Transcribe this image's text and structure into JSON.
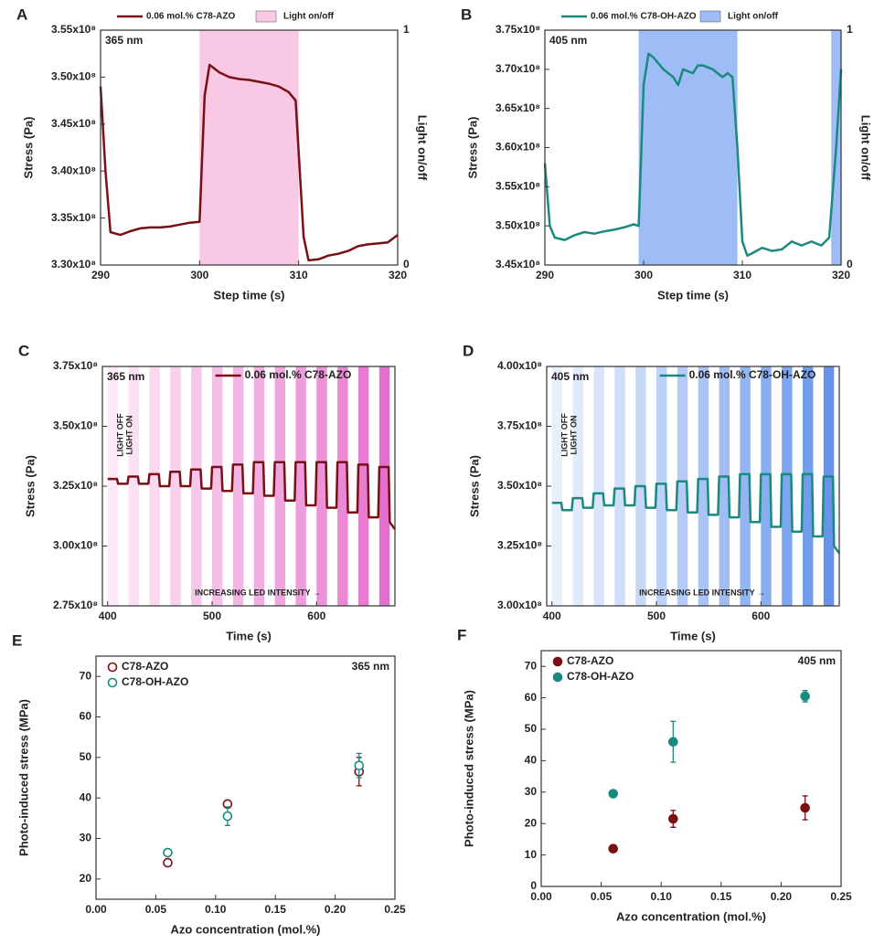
{
  "chart_data": [
    {
      "panel": "A",
      "type": "line",
      "label": "365 nm",
      "xlabel": "Step time (s)",
      "ylabel": "Stress (Pa)",
      "y2label": "Light on/off",
      "xlim": [
        290,
        320
      ],
      "xticks": [
        290,
        300,
        310,
        320
      ],
      "ylim": [
        330000000.0,
        355000000.0
      ],
      "yticks": [
        {
          "value": 330000000.0,
          "label": "3.30x10⁸"
        },
        {
          "value": 335000000.0,
          "label": "3.35x10⁸"
        },
        {
          "value": 340000000.0,
          "label": "3.40x10⁸"
        },
        {
          "value": 345000000.0,
          "label": "3.45x10⁸"
        },
        {
          "value": 350000000.0,
          "label": "3.50x10⁸"
        },
        {
          "value": 355000000.0,
          "label": "3.55x10⁸"
        }
      ],
      "y2lim": [
        0,
        1
      ],
      "y2ticks": [
        0,
        1
      ],
      "series": [
        {
          "name": "0.06 mol.% C78-AZO",
          "color": "#7a0f14",
          "x": [
            290,
            290.5,
            291,
            292,
            293,
            294,
            295,
            296,
            297,
            298,
            299,
            300,
            300.5,
            301,
            302,
            303,
            304,
            305,
            306,
            307,
            308,
            309,
            309.7,
            310,
            310.5,
            311,
            312,
            313,
            314,
            315,
            316,
            317,
            318,
            319,
            320
          ],
          "values": [
            349000000.0,
            340000000.0,
            333500000.0,
            333200000.0,
            333600000.0,
            333900000.0,
            334000000.0,
            334000000.0,
            334100000.0,
            334300000.0,
            334500000.0,
            334600000.0,
            348000000.0,
            351300000.0,
            350500000.0,
            350000000.0,
            349800000.0,
            349700000.0,
            349500000.0,
            349300000.0,
            349000000.0,
            348400000.0,
            347500000.0,
            342000000.0,
            333000000.0,
            330500000.0,
            330600000.0,
            331000000.0,
            331200000.0,
            331500000.0,
            332000000.0,
            332200000.0,
            332300000.0,
            332400000.0,
            333200000.0
          ]
        },
        {
          "name": "Light on/off",
          "color": "#f8c8e4",
          "axis": "y2",
          "fill": true,
          "x": [
            290,
            300,
            300,
            310,
            310,
            320
          ],
          "values": [
            0,
            0,
            1,
            1,
            0,
            0
          ]
        }
      ]
    },
    {
      "panel": "B",
      "type": "line",
      "label": "405 nm",
      "xlabel": "Step time (s)",
      "ylabel": "Stress (Pa)",
      "y2label": "Light on/off",
      "xlim": [
        290,
        320
      ],
      "xticks": [
        290,
        300,
        310,
        320
      ],
      "ylim": [
        345000000.0,
        375000000.0
      ],
      "yticks": [
        {
          "value": 345000000.0,
          "label": "3.45x10⁸"
        },
        {
          "value": 350000000.0,
          "label": "3.50x10⁸"
        },
        {
          "value": 355000000.0,
          "label": "3.55x10⁸"
        },
        {
          "value": 360000000.0,
          "label": "3.60x10⁸"
        },
        {
          "value": 365000000.0,
          "label": "3.65x10⁸"
        },
        {
          "value": 370000000.0,
          "label": "3.70x10⁸"
        },
        {
          "value": 375000000.0,
          "label": "3.75x10⁸"
        }
      ],
      "y2lim": [
        0,
        1
      ],
      "y2ticks": [
        0,
        1
      ],
      "series": [
        {
          "name": "0.06 mol.% C78-OH-AZO",
          "color": "#1a8a80",
          "x": [
            290,
            290.5,
            291,
            292,
            293,
            294,
            295,
            296,
            297,
            298,
            299,
            299.5,
            300,
            300.5,
            301,
            302,
            303,
            303.5,
            304,
            305,
            305.5,
            306,
            307,
            307.5,
            308,
            308.5,
            309,
            309.5,
            310,
            310.5,
            311,
            312,
            313,
            314,
            315,
            316,
            317,
            318,
            318.8,
            319.5,
            320
          ],
          "values": [
            358000000.0,
            350000000.0,
            348500000.0,
            348200000.0,
            348800000.0,
            349200000.0,
            349000000.0,
            349300000.0,
            349500000.0,
            349800000.0,
            350200000.0,
            350000000.0,
            368000000.0,
            372000000.0,
            371500000.0,
            370000000.0,
            369000000.0,
            368000000.0,
            370000000.0,
            369500000.0,
            370500000.0,
            370500000.0,
            370000000.0,
            369500000.0,
            369000000.0,
            369500000.0,
            369000000.0,
            360000000.0,
            348000000.0,
            346200000.0,
            346500000.0,
            347200000.0,
            346800000.0,
            347000000.0,
            348000000.0,
            347500000.0,
            348000000.0,
            347500000.0,
            348500000.0,
            360000000.0,
            370000000.0
          ]
        },
        {
          "name": "Light on/off",
          "color": "#9ebcf5",
          "axis": "y2",
          "fill": true,
          "x": [
            290,
            299.5,
            299.5,
            309.5,
            309.5,
            319,
            319,
            320
          ],
          "values": [
            0,
            0,
            1,
            1,
            0,
            0,
            1,
            1
          ]
        }
      ]
    },
    {
      "panel": "C",
      "type": "line",
      "label": "365 nm",
      "annotations": [
        "LIGHT OFF",
        "LIGHT ON",
        "INCREASING LED INTENSITY →"
      ],
      "xlabel": "Time (s)",
      "ylabel": "Stress (Pa)",
      "xlim": [
        395,
        675
      ],
      "xticks": [
        400,
        500,
        600
      ],
      "ylim": [
        275000000.0,
        375000000.0
      ],
      "yticks": [
        {
          "value": 275000000.0,
          "label": "2.75x10⁸"
        },
        {
          "value": 300000000.0,
          "label": "3.00x10⁸"
        },
        {
          "value": 325000000.0,
          "label": "3.25x10⁸"
        },
        {
          "value": 350000000.0,
          "label": "3.50x10⁸"
        },
        {
          "value": 375000000.0,
          "label": "3.75x10⁸"
        }
      ],
      "bands": [
        {
          "x": [
            400,
            410
          ],
          "color": "#fce8f6"
        },
        {
          "x": [
            420,
            430
          ],
          "color": "#fbe0f3"
        },
        {
          "x": [
            440,
            450
          ],
          "color": "#f9d8f0"
        },
        {
          "x": [
            460,
            470
          ],
          "color": "#f8d0ed"
        },
        {
          "x": [
            480,
            490
          ],
          "color": "#f6c7ea"
        },
        {
          "x": [
            500,
            510
          ],
          "color": "#f5bfe7"
        },
        {
          "x": [
            520,
            530
          ],
          "color": "#f3b6e4"
        },
        {
          "x": [
            540,
            550
          ],
          "color": "#f1aee1"
        },
        {
          "x": [
            560,
            570
          ],
          "color": "#f0a5de"
        },
        {
          "x": [
            580,
            590
          ],
          "color": "#ee9cdb"
        },
        {
          "x": [
            600,
            610
          ],
          "color": "#ec92d8"
        },
        {
          "x": [
            620,
            630
          ],
          "color": "#ea88d5"
        },
        {
          "x": [
            640,
            650
          ],
          "color": "#e87cd2"
        },
        {
          "x": [
            660,
            670
          ],
          "color": "#e56fce"
        }
      ],
      "series": [
        {
          "name": "0.06 mol.% C78-AZO",
          "color": "#7a0f14",
          "x": [
            400,
            409,
            410,
            419,
            420,
            429,
            430,
            439,
            440,
            449,
            450,
            459,
            460,
            469,
            470,
            479,
            480,
            489,
            490,
            499,
            500,
            509,
            510,
            519,
            520,
            529,
            530,
            539,
            540,
            549,
            550,
            559,
            560,
            569,
            570,
            579,
            580,
            589,
            590,
            599,
            600,
            609,
            610,
            619,
            620,
            629,
            630,
            639,
            640,
            649,
            650,
            659,
            660,
            669,
            670,
            675
          ],
          "values": [
            328000000.0,
            328000000.0,
            326000000.0,
            326000000.0,
            329000000.0,
            329000000.0,
            326000000.0,
            326000000.0,
            330000000.0,
            330000000.0,
            325000000.0,
            325000000.0,
            331000000.0,
            331000000.0,
            325000000.0,
            325000000.0,
            332000000.0,
            332000000.0,
            324000000.0,
            324000000.0,
            333000000.0,
            333000000.0,
            323000000.0,
            323000000.0,
            334000000.0,
            334000000.0,
            322000000.0,
            322000000.0,
            335000000.0,
            335000000.0,
            321000000.0,
            321000000.0,
            335000000.0,
            335000000.0,
            319000000.0,
            319000000.0,
            335000000.0,
            335000000.0,
            317000000.0,
            317000000.0,
            335000000.0,
            335000000.0,
            316000000.0,
            316000000.0,
            335000000.0,
            335000000.0,
            314000000.0,
            314000000.0,
            334000000.0,
            334000000.0,
            312000000.0,
            312000000.0,
            333000000.0,
            333000000.0,
            310000000.0,
            307000000.0
          ]
        }
      ]
    },
    {
      "panel": "D",
      "type": "line",
      "label": "405 nm",
      "annotations": [
        "LIGHT OFF",
        "LIGHT ON",
        "INCREASING LED INTENSITY →"
      ],
      "xlabel": "Time (s)",
      "ylabel": "Stress (Pa)",
      "xlim": [
        395,
        675
      ],
      "xticks": [
        400,
        500,
        600
      ],
      "ylim": [
        300000000.0,
        400000000.0
      ],
      "yticks": [
        {
          "value": 300000000.0,
          "label": "3.00x10⁸"
        },
        {
          "value": 325000000.0,
          "label": "3.25x10⁸"
        },
        {
          "value": 350000000.0,
          "label": "3.50x10⁸"
        },
        {
          "value": 375000000.0,
          "label": "3.75x10⁸"
        },
        {
          "value": 400000000.0,
          "label": "4.00x10⁸"
        }
      ],
      "bands": [
        {
          "x": [
            400,
            410
          ],
          "color": "#e8f0fc"
        },
        {
          "x": [
            420,
            430
          ],
          "color": "#e0eafb"
        },
        {
          "x": [
            440,
            450
          ],
          "color": "#d7e4fa"
        },
        {
          "x": [
            460,
            470
          ],
          "color": "#cfdef9"
        },
        {
          "x": [
            480,
            490
          ],
          "color": "#c6d8f8"
        },
        {
          "x": [
            500,
            510
          ],
          "color": "#bcd1f7"
        },
        {
          "x": [
            520,
            530
          ],
          "color": "#b3cbf6"
        },
        {
          "x": [
            540,
            550
          ],
          "color": "#a9c4f4"
        },
        {
          "x": [
            560,
            570
          ],
          "color": "#9fbdf3"
        },
        {
          "x": [
            580,
            590
          ],
          "color": "#94b5f1"
        },
        {
          "x": [
            600,
            610
          ],
          "color": "#89aef0"
        },
        {
          "x": [
            620,
            630
          ],
          "color": "#7ea6ee"
        },
        {
          "x": [
            640,
            650
          ],
          "color": "#729dec"
        },
        {
          "x": [
            660,
            670
          ],
          "color": "#6694ea"
        }
      ],
      "series": [
        {
          "name": "0.06 mol.% C78-OH-AZO",
          "color": "#1a8a80",
          "x": [
            400,
            409,
            410,
            419,
            420,
            429,
            430,
            439,
            440,
            449,
            450,
            459,
            460,
            469,
            470,
            479,
            480,
            489,
            490,
            499,
            500,
            509,
            510,
            519,
            520,
            529,
            530,
            539,
            540,
            549,
            550,
            559,
            560,
            569,
            570,
            579,
            580,
            589,
            590,
            599,
            600,
            609,
            610,
            619,
            620,
            629,
            630,
            639,
            640,
            649,
            650,
            659,
            660,
            669,
            670,
            675
          ],
          "values": [
            343000000.0,
            343000000.0,
            340000000.0,
            340000000.0,
            345000000.0,
            345000000.0,
            341000000.0,
            341000000.0,
            347000000.0,
            347000000.0,
            342000000.0,
            342000000.0,
            349000000.0,
            349000000.0,
            342000000.0,
            342000000.0,
            350000000.0,
            350000000.0,
            341000000.0,
            341000000.0,
            351000000.0,
            351000000.0,
            340000000.0,
            340000000.0,
            352000000.0,
            352000000.0,
            339000000.0,
            339000000.0,
            353000000.0,
            353000000.0,
            338000000.0,
            338000000.0,
            354000000.0,
            354000000.0,
            337000000.0,
            337000000.0,
            355000000.0,
            355000000.0,
            335000000.0,
            335000000.0,
            355000000.0,
            355000000.0,
            333000000.0,
            333000000.0,
            355000000.0,
            355000000.0,
            331000000.0,
            331000000.0,
            355000000.0,
            355000000.0,
            329000000.0,
            329000000.0,
            354000000.0,
            354000000.0,
            325000000.0,
            322000000.0
          ]
        }
      ]
    },
    {
      "panel": "E",
      "type": "scatter",
      "label": "365 nm",
      "xlabel": "Azo concentration (mol.%)",
      "ylabel": "Photo-induced stress (MPa)",
      "xlim": [
        0,
        0.25
      ],
      "xticks": [
        {
          "value": 0,
          "label": "0.00"
        },
        0.05,
        {
          "value": 0.1,
          "label": "0.10"
        },
        0.15,
        {
          "value": 0.2,
          "label": "0.20"
        },
        0.25
      ],
      "ylim": [
        15,
        75
      ],
      "yticks": [
        20,
        30,
        40,
        50,
        60,
        70
      ],
      "filled": false,
      "x": [
        0.06,
        0.11,
        0.22
      ],
      "series": [
        {
          "name": "C78-AZO",
          "color": "#7a0f14",
          "values": [
            24,
            38.5,
            46.5
          ],
          "errors": [
            0.5,
            0.8,
            3.5
          ]
        },
        {
          "name": "C78-OH-AZO",
          "color": "#1a8a80",
          "values": [
            26.5,
            35.5,
            48
          ],
          "errors": [
            0.7,
            2.3,
            3
          ]
        }
      ]
    },
    {
      "panel": "F",
      "type": "scatter",
      "label": "405 nm",
      "xlabel": "Azo concentration (mol.%)",
      "ylabel": "Photo-induced stress (MPa)",
      "xlim": [
        0,
        0.25
      ],
      "xticks": [
        {
          "value": 0,
          "label": "0.00"
        },
        0.05,
        {
          "value": 0.1,
          "label": "0.10"
        },
        0.15,
        {
          "value": 0.2,
          "label": "0.20"
        },
        0.25
      ],
      "ylim": [
        0,
        75
      ],
      "yticks": [
        0,
        10,
        20,
        30,
        40,
        50,
        60,
        70
      ],
      "filled": true,
      "x": [
        0.06,
        0.11,
        0.22
      ],
      "series": [
        {
          "name": "C78-AZO",
          "color": "#7a0f14",
          "values": [
            12,
            21.5,
            25
          ],
          "errors": [
            0.5,
            2.7,
            3.8
          ]
        },
        {
          "name": "C78-OH-AZO",
          "color": "#1a8a80",
          "values": [
            29.5,
            46,
            60.5
          ],
          "errors": [
            0.5,
            6.5,
            1.8
          ]
        }
      ]
    }
  ]
}
